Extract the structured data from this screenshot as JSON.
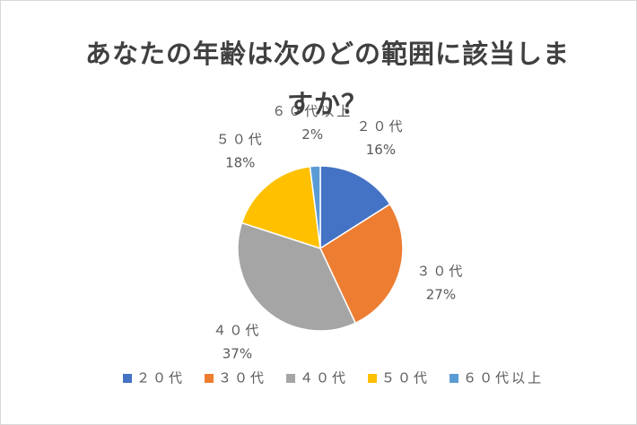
{
  "chart_data": {
    "type": "pie",
    "title": "あなたの年齢は次のどの範囲に該当しますか？",
    "categories": [
      "２０代",
      "３０代",
      "４０代",
      "５０代",
      "６０代以上"
    ],
    "values": [
      16,
      27,
      37,
      18,
      2
    ],
    "value_labels": [
      "16%",
      "27%",
      "37%",
      "18%",
      "2%"
    ],
    "colors": [
      "#4472c4",
      "#ed7d31",
      "#a5a5a5",
      "#ffc000",
      "#5b9bd5"
    ],
    "legend": "bottom"
  }
}
